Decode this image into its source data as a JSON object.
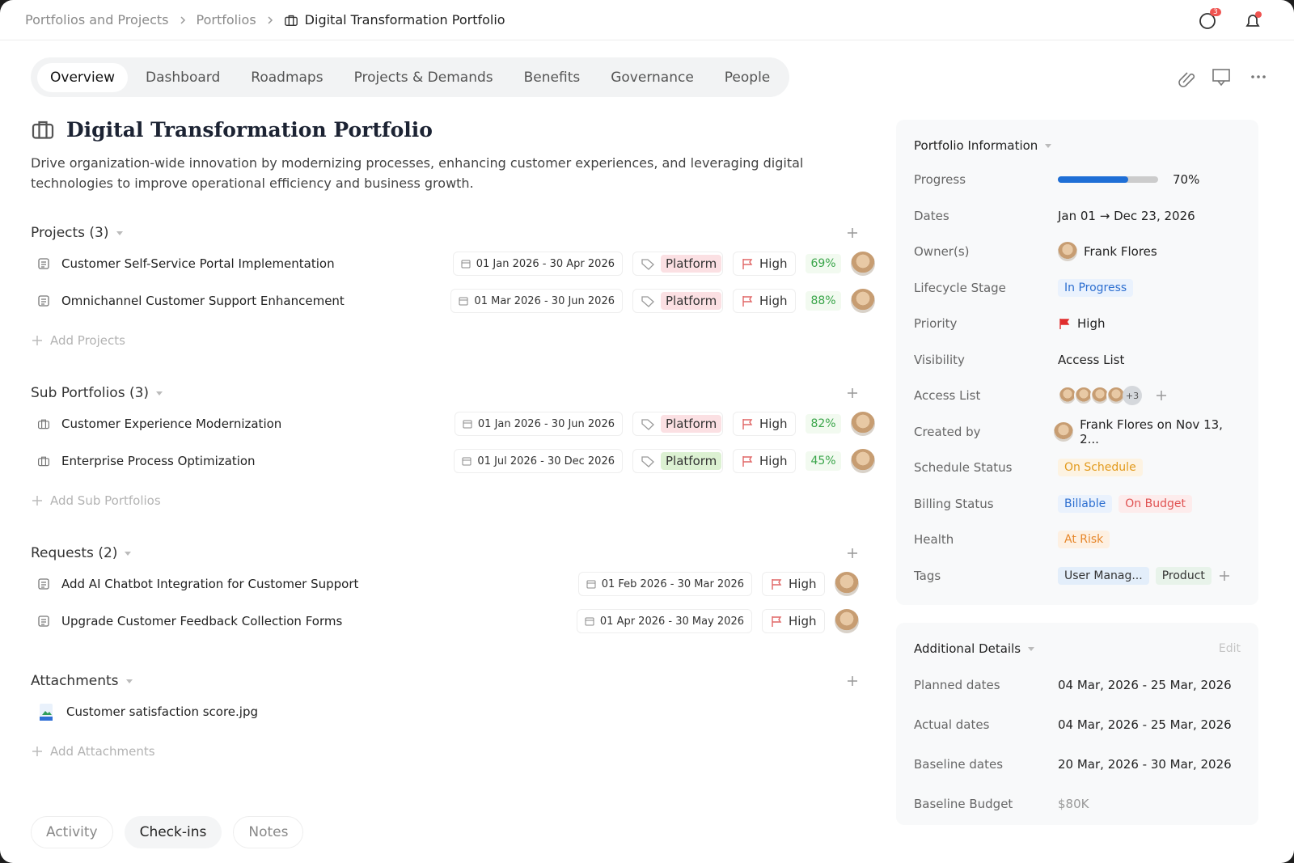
{
  "breadcrumb": [
    "Portfolios and Projects",
    "Portfolios",
    "Digital Transformation Portfolio"
  ],
  "header": {
    "chat_count": "3"
  },
  "tabs": [
    "Overview",
    "Dashboard",
    "Roadmaps",
    "Projects & Demands",
    "Benefits",
    "Governance",
    "People"
  ],
  "title": "Digital Transformation Portfolio",
  "description": "Drive organization-wide innovation by modernizing processes, enhancing customer experiences, and leveraging digital technologies to improve operational efficiency and business growth.",
  "projects": {
    "title": "Projects (3)",
    "add": "Add Projects",
    "items": [
      {
        "name": "Customer Self-Service Portal Implementation",
        "dates": "01 Jan 2026 - 30 Apr 2026",
        "tag": "Platform",
        "tag_color": "#fbe0e3",
        "priority": "High",
        "percent": "69%"
      },
      {
        "name": "Omnichannel Customer Support Enhancement",
        "dates": "01 Mar 2026 - 30 Jun 2026",
        "tag": "Platform",
        "tag_color": "#fbe0e3",
        "priority": "High",
        "percent": "88%"
      }
    ]
  },
  "sub_portfolios": {
    "title": "Sub Portfolios (3)",
    "add": "Add Sub Portfolios",
    "items": [
      {
        "name": "Customer Experience Modernization",
        "dates": "01 Jan 2026 - 30 Jun 2026",
        "tag": "Platform",
        "tag_color": "#fbe0e3",
        "priority": "High",
        "percent": "82%"
      },
      {
        "name": "Enterprise Process Optimization",
        "dates": "01 Jul 2026 - 30 Dec 2026",
        "tag": "Platform",
        "tag_color": "#dcf1d2",
        "priority": "High",
        "percent": "45%"
      }
    ]
  },
  "requests": {
    "title": "Requests (2)",
    "items": [
      {
        "name": "Add AI Chatbot Integration for Customer Support",
        "dates": "01 Feb 2026 - 30 Mar 2026",
        "priority": "High"
      },
      {
        "name": "Upgrade Customer Feedback Collection Forms",
        "dates": "01 Apr 2026 - 30 May 2026",
        "priority": "High"
      }
    ]
  },
  "attachments": {
    "title": "Attachments",
    "add": "Add Attachments",
    "items": [
      "Customer satisfaction score.jpg"
    ]
  },
  "bottom_tabs": [
    "Activity",
    "Check-ins",
    "Notes"
  ],
  "portfolio_info": {
    "title": "Portfolio Information",
    "progress": {
      "label": "Progress",
      "value": 70,
      "value_label": "70%"
    },
    "dates": {
      "label": "Dates",
      "value": "Jan 01 → Dec 23, 2026"
    },
    "owners": {
      "label": "Owner(s)",
      "value": "Frank Flores"
    },
    "lifecycle_stage": {
      "label": "Lifecycle Stage",
      "value": "In Progress"
    },
    "priority": {
      "label": "Priority",
      "value": "High"
    },
    "visibility": {
      "label": "Visibility",
      "value": "Access List"
    },
    "access_list": {
      "label": "Access List",
      "more": "+3"
    },
    "created_by": {
      "label": "Created by",
      "value": "Frank Flores on Nov 13, 2..."
    },
    "schedule_status": {
      "label": "Schedule Status",
      "value": "On Schedule"
    },
    "billing_status": {
      "label": "Billing Status",
      "values": [
        "Billable",
        "On Budget"
      ]
    },
    "health": {
      "label": "Health",
      "value": "At Risk"
    },
    "tags": {
      "label": "Tags",
      "values": [
        "User Manag...",
        "Product"
      ]
    }
  },
  "additional_details": {
    "title": "Additional Details",
    "edit": "Edit",
    "fields": [
      {
        "label": "Planned dates",
        "value": "04 Mar, 2026 - 25 Mar, 2026"
      },
      {
        "label": "Actual dates",
        "value": "04 Mar, 2026 - 25 Mar, 2026"
      },
      {
        "label": "Baseline dates",
        "value": "20 Mar, 2026 - 30 Mar, 2026"
      },
      {
        "label": "Baseline Budget",
        "value": "$80K"
      }
    ]
  }
}
